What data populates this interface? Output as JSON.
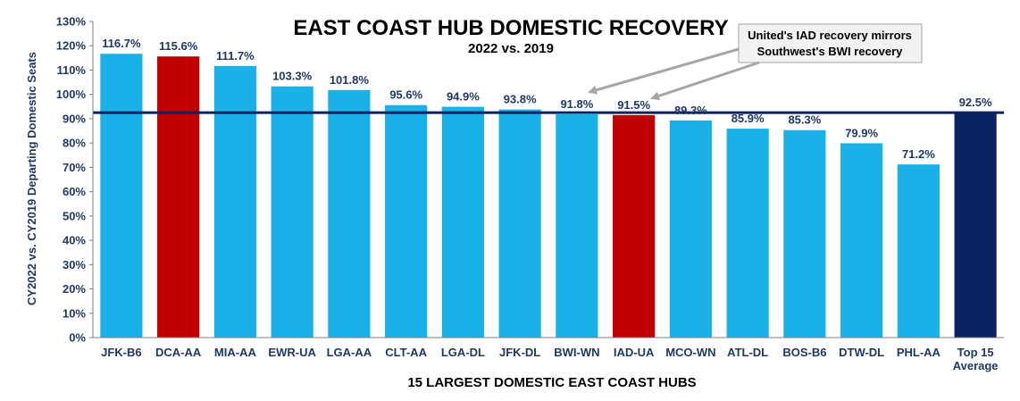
{
  "chart_data": {
    "type": "bar",
    "title": "EAST COAST HUB DOMESTIC RECOVERY",
    "subtitle": "2022 vs. 2019",
    "xlabel": "15 LARGEST DOMESTIC EAST COAST HUBS",
    "ylabel": "CY2022 vs. CY2019 Departing Domestic Seats",
    "ylim": [
      0,
      130
    ],
    "y_ticks": [
      "0%",
      "10%",
      "20%",
      "30%",
      "40%",
      "50%",
      "60%",
      "70%",
      "80%",
      "90%",
      "100%",
      "110%",
      "120%",
      "130%"
    ],
    "categories": [
      "JFK-B6",
      "DCA-AA",
      "MIA-AA",
      "EWR-UA",
      "LGA-AA",
      "CLT-AA",
      "LGA-DL",
      "JFK-DL",
      "BWI-WN",
      "IAD-UA",
      "MCO-WN",
      "ATL-DL",
      "BOS-B6",
      "DTW-DL",
      "PHL-AA",
      "Top 15\nAverage"
    ],
    "values": [
      116.7,
      115.6,
      111.7,
      103.3,
      101.8,
      95.6,
      94.9,
      93.8,
      91.8,
      91.5,
      89.3,
      85.9,
      85.3,
      79.9,
      71.2,
      92.5
    ],
    "value_labels": [
      "116.7%",
      "115.6%",
      "111.7%",
      "103.3%",
      "101.8%",
      "95.6%",
      "94.9%",
      "93.8%",
      "91.8%",
      "91.5%",
      "89.3%",
      "85.9%",
      "85.3%",
      "79.9%",
      "71.2%",
      "92.5%"
    ],
    "bar_colors": [
      "#1ab0e8",
      "#c00000",
      "#1ab0e8",
      "#1ab0e8",
      "#1ab0e8",
      "#1ab0e8",
      "#1ab0e8",
      "#1ab0e8",
      "#1ab0e8",
      "#c00000",
      "#1ab0e8",
      "#1ab0e8",
      "#1ab0e8",
      "#1ab0e8",
      "#1ab0e8",
      "#0b2461"
    ],
    "reference_line": {
      "value": 92.5,
      "color": "#0b2461"
    },
    "annotation": {
      "lines": [
        "United's IAD recovery mirrors",
        "Southwest's BWI recovery"
      ],
      "points_to": [
        "BWI-WN",
        "IAD-UA"
      ]
    },
    "grid": false,
    "legend": "none"
  }
}
